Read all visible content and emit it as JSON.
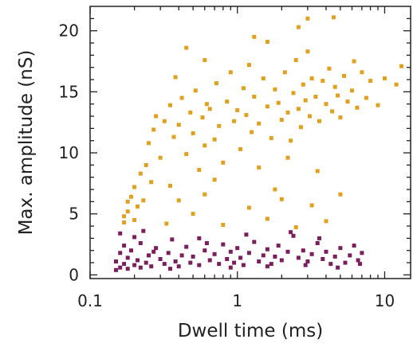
{
  "chart_data": {
    "type": "scatter",
    "xlabel": "Dwell time (ms)",
    "ylabel": "Max. amplitude (nS)",
    "xscale": "log",
    "xlim": [
      0.1,
      15
    ],
    "ylim": [
      -0.3,
      22
    ],
    "xticks": [
      0.1,
      1,
      10
    ],
    "xtick_labels": [
      "0.1",
      "1",
      "10"
    ],
    "yticks": [
      0,
      5,
      10,
      15,
      20
    ],
    "ytick_labels": [
      "0",
      "5",
      "10",
      "15",
      "20"
    ],
    "grid": false,
    "legend": "none",
    "series": [
      {
        "color": "#e0a020",
        "points": [
          [
            0.17,
            4.3
          ],
          [
            0.17,
            4.8
          ],
          [
            0.18,
            5.2
          ],
          [
            0.18,
            6.0
          ],
          [
            0.19,
            6.4
          ],
          [
            0.2,
            4.5
          ],
          [
            0.2,
            7.2
          ],
          [
            0.21,
            5.6
          ],
          [
            0.22,
            8.3
          ],
          [
            0.23,
            6.1
          ],
          [
            0.24,
            9.0
          ],
          [
            0.25,
            10.8
          ],
          [
            0.26,
            7.6
          ],
          [
            0.27,
            11.9
          ],
          [
            0.28,
            13.0
          ],
          [
            0.3,
            9.6
          ],
          [
            0.32,
            12.6
          ],
          [
            0.33,
            4.2
          ],
          [
            0.35,
            13.9
          ],
          [
            0.37,
            11.3
          ],
          [
            0.38,
            16.2
          ],
          [
            0.4,
            12.3
          ],
          [
            0.42,
            14.5
          ],
          [
            0.45,
            9.9
          ],
          [
            0.48,
            13.3
          ],
          [
            0.5,
            11.6
          ],
          [
            0.52,
            15.1
          ],
          [
            0.55,
            8.6
          ],
          [
            0.58,
            12.9
          ],
          [
            0.6,
            10.6
          ],
          [
            0.62,
            14.0
          ],
          [
            0.65,
            13.6
          ],
          [
            0.7,
            11.1
          ],
          [
            0.72,
            15.7
          ],
          [
            0.75,
            12.2
          ],
          [
            0.8,
            9.2
          ],
          [
            0.85,
            14.2
          ],
          [
            0.9,
            16.6
          ],
          [
            0.95,
            12.6
          ],
          [
            1.0,
            13.5
          ],
          [
            1.05,
            10.3
          ],
          [
            1.1,
            15.3
          ],
          [
            1.15,
            13.1
          ],
          [
            1.2,
            17.2
          ],
          [
            1.25,
            11.7
          ],
          [
            1.3,
            14.6
          ],
          [
            1.4,
            12.4
          ],
          [
            1.5,
            16.1
          ],
          [
            1.6,
            13.8
          ],
          [
            1.7,
            11.2
          ],
          [
            1.8,
            15.2
          ],
          [
            1.9,
            14.1
          ],
          [
            2.0,
            12.7
          ],
          [
            2.1,
            16.6
          ],
          [
            2.2,
            13.3
          ],
          [
            2.3,
            11.0
          ],
          [
            2.4,
            14.9
          ],
          [
            2.5,
            17.6
          ],
          [
            2.6,
            13.6
          ],
          [
            2.7,
            12.1
          ],
          [
            2.8,
            15.6
          ],
          [
            2.9,
            14.3
          ],
          [
            3.0,
            18.3
          ],
          [
            3.1,
            13.0
          ],
          [
            3.2,
            16.1
          ],
          [
            3.4,
            14.6
          ],
          [
            3.6,
            12.6
          ],
          [
            3.8,
            15.9
          ],
          [
            4.0,
            14.0
          ],
          [
            4.2,
            16.9
          ],
          [
            4.4,
            13.4
          ],
          [
            4.6,
            15.4
          ],
          [
            4.8,
            14.7
          ],
          [
            5.0,
            12.9
          ],
          [
            5.3,
            16.3
          ],
          [
            5.6,
            14.2
          ],
          [
            6.0,
            15.1
          ],
          [
            6.5,
            13.7
          ],
          [
            7.0,
            16.6
          ],
          [
            7.5,
            14.5
          ],
          [
            8.0,
            15.9
          ],
          [
            9.0,
            13.9
          ],
          [
            10.0,
            16.1
          ],
          [
            12.0,
            15.6
          ],
          [
            13.0,
            17.1
          ],
          [
            3.0,
            21.0
          ],
          [
            4.5,
            21.1
          ],
          [
            2.6,
            20.3
          ],
          [
            1.3,
            19.5
          ],
          [
            0.45,
            18.6
          ],
          [
            0.6,
            17.6
          ],
          [
            1.6,
            19.1
          ],
          [
            6.2,
            17.5
          ],
          [
            0.4,
            6.1
          ],
          [
            0.5,
            5.0
          ],
          [
            0.6,
            6.6
          ],
          [
            0.8,
            4.1
          ],
          [
            1.2,
            5.5
          ],
          [
            1.6,
            4.6
          ],
          [
            2.0,
            6.2
          ],
          [
            2.5,
            3.9
          ],
          [
            3.2,
            5.7
          ],
          [
            4.0,
            4.4
          ],
          [
            5.0,
            6.6
          ],
          [
            0.35,
            7.3
          ],
          [
            0.7,
            7.8
          ],
          [
            1.8,
            7.0
          ],
          [
            3.5,
            8.5
          ],
          [
            2.2,
            9.6
          ],
          [
            1.4,
            8.8
          ]
        ]
      },
      {
        "color": "#7a1f5c",
        "points": [
          [
            0.15,
            0.4
          ],
          [
            0.15,
            1.1
          ],
          [
            0.16,
            0.6
          ],
          [
            0.16,
            1.8
          ],
          [
            0.17,
            0.9
          ],
          [
            0.17,
            2.4
          ],
          [
            0.18,
            0.5
          ],
          [
            0.18,
            1.4
          ],
          [
            0.19,
            2.0
          ],
          [
            0.2,
            0.8
          ],
          [
            0.2,
            3.1
          ],
          [
            0.21,
            1.2
          ],
          [
            0.22,
            0.6
          ],
          [
            0.22,
            2.6
          ],
          [
            0.24,
            1.0
          ],
          [
            0.25,
            1.6
          ],
          [
            0.26,
            0.7
          ],
          [
            0.28,
            2.2
          ],
          [
            0.3,
            1.3
          ],
          [
            0.32,
            0.9
          ],
          [
            0.34,
            1.8
          ],
          [
            0.36,
            2.9
          ],
          [
            0.38,
            1.1
          ],
          [
            0.4,
            0.7
          ],
          [
            0.42,
            1.6
          ],
          [
            0.45,
            2.3
          ],
          [
            0.48,
            1.0
          ],
          [
            0.5,
            1.5
          ],
          [
            0.55,
            0.8
          ],
          [
            0.6,
            2.0
          ],
          [
            0.65,
            1.2
          ],
          [
            0.7,
            1.7
          ],
          [
            0.75,
            0.9
          ],
          [
            0.8,
            2.5
          ],
          [
            0.85,
            1.3
          ],
          [
            0.9,
            1.9
          ],
          [
            0.95,
            1.0
          ],
          [
            1.0,
            2.2
          ],
          [
            1.05,
            1.4
          ],
          [
            1.1,
            0.8
          ],
          [
            1.2,
            1.8
          ],
          [
            1.3,
            2.7
          ],
          [
            1.4,
            1.1
          ],
          [
            1.5,
            1.6
          ],
          [
            1.6,
            2.1
          ],
          [
            1.7,
            0.9
          ],
          [
            1.8,
            1.5
          ],
          [
            1.9,
            2.4
          ],
          [
            2.0,
            1.2
          ],
          [
            2.2,
            1.9
          ],
          [
            2.4,
            3.2
          ],
          [
            2.6,
            1.4
          ],
          [
            2.8,
            2.0
          ],
          [
            3.0,
            1.1
          ],
          [
            3.2,
            1.7
          ],
          [
            3.5,
            2.6
          ],
          [
            3.8,
            1.3
          ],
          [
            4.0,
            1.9
          ],
          [
            4.3,
            0.9
          ],
          [
            4.6,
            1.5
          ],
          [
            5.0,
            2.2
          ],
          [
            5.4,
            1.0
          ],
          [
            5.8,
            1.6
          ],
          [
            6.2,
            2.4
          ],
          [
            6.6,
            1.2
          ],
          [
            7.0,
            1.8
          ],
          [
            0.23,
            3.6
          ],
          [
            0.55,
            3.0
          ],
          [
            1.15,
            3.3
          ],
          [
            2.3,
            3.5
          ],
          [
            3.6,
            3.0
          ],
          [
            0.16,
            3.4
          ],
          [
            0.35,
            0.5
          ],
          [
            0.9,
            0.6
          ],
          [
            1.6,
            0.7
          ],
          [
            2.9,
            0.8
          ],
          [
            4.8,
            0.6
          ],
          [
            6.8,
            0.9
          ],
          [
            0.27,
            1.9
          ],
          [
            0.62,
            2.6
          ]
        ]
      }
    ]
  }
}
